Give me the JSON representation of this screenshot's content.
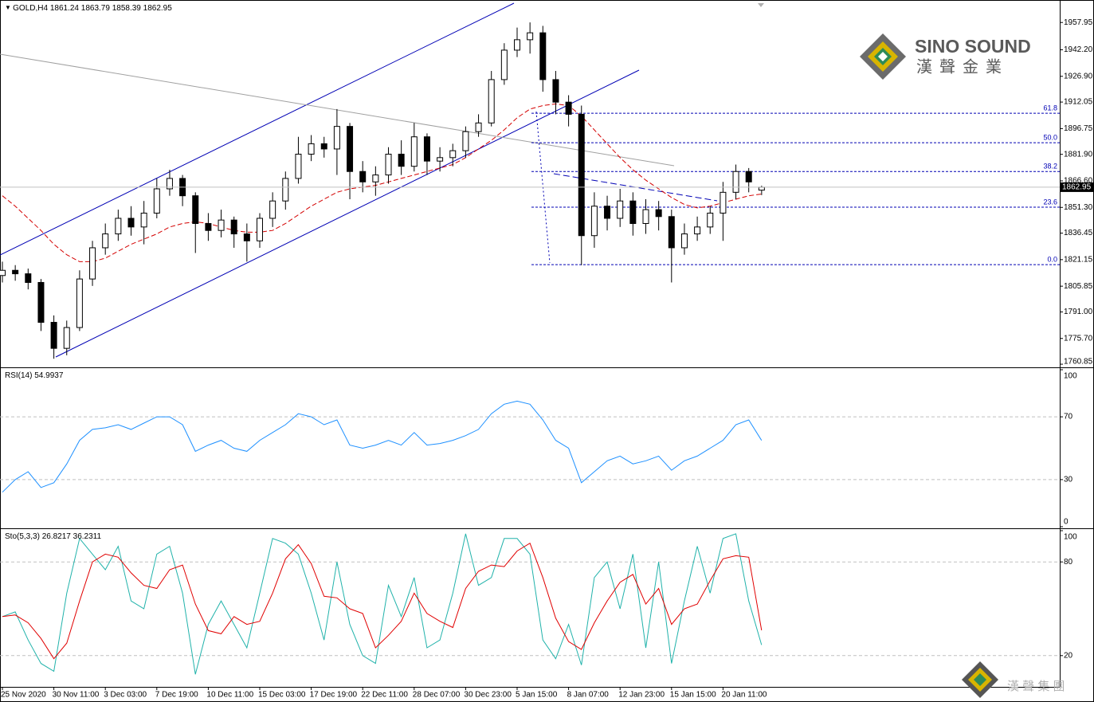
{
  "chart_data": [
    {
      "type": "candlestick",
      "symbol": "GOLD,H4",
      "categories": [
        "25 Nov 2020",
        null,
        null,
        null,
        "30 Nov 11:00",
        null,
        null,
        null,
        "3 Dec 03:00",
        null,
        null,
        null,
        "7 Dec 19:00",
        null,
        null,
        null,
        "10 Dec 11:00",
        null,
        null,
        null,
        "15 Dec 03:00",
        null,
        null,
        null,
        "17 Dec 19:00",
        null,
        null,
        null,
        "22 Dec 11:00",
        null,
        null,
        null,
        "28 Dec 07:00",
        null,
        null,
        null,
        "30 Dec 23:00",
        null,
        null,
        null,
        "5 Jan 15:00",
        null,
        null,
        null,
        "8 Jan 07:00",
        null,
        null,
        null,
        "12 Jan 23:00",
        null,
        null,
        null,
        "15 Jan 15:00",
        null,
        null,
        null,
        "20 Jan 11:00",
        null,
        null,
        null
      ],
      "open": [
        1812,
        1815,
        1813,
        1808,
        1785,
        1770,
        1782,
        1810,
        1828,
        1836,
        1845,
        1840,
        1848,
        1862,
        1868,
        1858,
        1842,
        1838,
        1844,
        1836,
        1832,
        1845,
        1855,
        1868,
        1882,
        1888,
        1885,
        1898,
        1872,
        1866,
        1870,
        1882,
        1875,
        1892,
        1878,
        1880,
        1884,
        1895,
        1900,
        1925,
        1942,
        1948,
        1952,
        1925,
        1912,
        1905,
        1835,
        1852,
        1845,
        1855,
        1842,
        1850,
        1846,
        1828,
        1836,
        1840,
        1848,
        1860,
        1872,
        1861.24
      ],
      "high": [
        1820,
        1818,
        1816,
        1810,
        1789,
        1786,
        1815,
        1832,
        1842,
        1850,
        1852,
        1855,
        1868,
        1873,
        1870,
        1860,
        1848,
        1850,
        1846,
        1842,
        1848,
        1860,
        1872,
        1892,
        1893,
        1892,
        1908,
        1900,
        1878,
        1875,
        1886,
        1890,
        1900,
        1894,
        1886,
        1888,
        1898,
        1905,
        1930,
        1946,
        1955,
        1958,
        1956,
        1930,
        1916,
        1910,
        1860,
        1858,
        1862,
        1860,
        1856,
        1855,
        1850,
        1842,
        1846,
        1852,
        1866,
        1876,
        1874,
        1863.79
      ],
      "low": [
        1808,
        1809,
        1804,
        1780,
        1764,
        1766,
        1780,
        1806,
        1824,
        1832,
        1835,
        1830,
        1845,
        1858,
        1852,
        1825,
        1832,
        1834,
        1828,
        1820,
        1828,
        1840,
        1850,
        1865,
        1878,
        1880,
        1870,
        1856,
        1860,
        1858,
        1865,
        1870,
        1872,
        1870,
        1872,
        1875,
        1880,
        1892,
        1898,
        1922,
        1938,
        1940,
        1918,
        1905,
        1898,
        1818,
        1828,
        1838,
        1840,
        1835,
        1836,
        1838,
        1808,
        1824,
        1832,
        1836,
        1832,
        1856,
        1860,
        1858.39
      ],
      "close": [
        1815,
        1813,
        1808,
        1785,
        1770,
        1782,
        1810,
        1828,
        1836,
        1845,
        1840,
        1848,
        1862,
        1868,
        1858,
        1842,
        1838,
        1844,
        1836,
        1832,
        1845,
        1855,
        1868,
        1882,
        1888,
        1885,
        1898,
        1872,
        1866,
        1870,
        1882,
        1875,
        1892,
        1878,
        1880,
        1884,
        1895,
        1900,
        1925,
        1942,
        1948,
        1952,
        1925,
        1912,
        1905,
        1835,
        1852,
        1845,
        1855,
        1842,
        1850,
        1846,
        1828,
        1836,
        1840,
        1848,
        1860,
        1872,
        1866,
        1862.95
      ],
      "up_color": "#ffffff",
      "down_color": "#000000",
      "line_color": "#000000",
      "ma": {
        "color": "#d40000",
        "values": [
          1858,
          1852,
          1845,
          1838,
          1830,
          1824,
          1820,
          1820,
          1822,
          1826,
          1830,
          1833,
          1836,
          1840,
          1842,
          1843,
          1842,
          1840,
          1838,
          1837,
          1837,
          1838,
          1842,
          1847,
          1852,
          1856,
          1860,
          1862,
          1863,
          1864,
          1866,
          1868,
          1870,
          1872,
          1874,
          1876,
          1880,
          1885,
          1890,
          1896,
          1903,
          1908,
          1910,
          1911,
          1910,
          1904,
          1896,
          1888,
          1880,
          1873,
          1867,
          1862,
          1857,
          1853,
          1851,
          1852,
          1854,
          1856,
          1858,
          1859
        ]
      },
      "fibonacci": {
        "color": "#0000b4",
        "levels": [
          {
            "value": 1905.6,
            "label": "61.8"
          },
          {
            "value": 1888.6,
            "label": "50.0"
          },
          {
            "value": 1872.0,
            "label": "38.2"
          },
          {
            "value": 1851.4,
            "label": "23.6"
          },
          {
            "value": 1818.3,
            "label": "0.0"
          }
        ]
      },
      "ylim": [
        1759.5,
        1970.0
      ],
      "yticks": [
        {
          "value": 1957.95,
          "label": "1957.95"
        },
        {
          "value": 1942.2,
          "label": "1942.20"
        },
        {
          "value": 1926.9,
          "label": "1926.90"
        },
        {
          "value": 1912.05,
          "label": "1912.05"
        },
        {
          "value": 1896.75,
          "label": "1896.75"
        },
        {
          "value": 1881.9,
          "label": "1881.90"
        },
        {
          "value": 1866.6,
          "label": "1866.60"
        },
        {
          "value": 1851.3,
          "label": "1851.30"
        },
        {
          "value": 1836.45,
          "label": "1836.45"
        },
        {
          "value": 1821.15,
          "label": "1821.15"
        },
        {
          "value": 1805.85,
          "label": "1805.85"
        },
        {
          "value": 1791.0,
          "label": "1791.00"
        },
        {
          "value": 1775.7,
          "label": "1775.70"
        },
        {
          "value": 1760.85,
          "label": "1760.85"
        }
      ]
    },
    {
      "type": "line",
      "title": "RSI(14)",
      "series": [
        {
          "color": "#1e90ff",
          "values": [
            22,
            30,
            35,
            25,
            28,
            40,
            55,
            62,
            63,
            65,
            62,
            66,
            70,
            70,
            65,
            48,
            52,
            55,
            50,
            48,
            55,
            60,
            65,
            72,
            70,
            65,
            68,
            52,
            50,
            52,
            55,
            52,
            60,
            52,
            53,
            55,
            58,
            62,
            72,
            78,
            80,
            78,
            68,
            55,
            50,
            28,
            35,
            42,
            45,
            40,
            42,
            45,
            36,
            42,
            45,
            50,
            55,
            65,
            68,
            54.9937
          ]
        }
      ],
      "ylim": [
        0,
        100
      ],
      "yticks": [
        0,
        30,
        70,
        100
      ],
      "levels": [
        30,
        70
      ]
    },
    {
      "type": "line",
      "title": "Sto(5,3,3)",
      "series": [
        {
          "color": "#20b2aa",
          "values": [
            45,
            48,
            30,
            15,
            10,
            60,
            95,
            85,
            75,
            90,
            55,
            50,
            85,
            90,
            60,
            8,
            40,
            55,
            40,
            25,
            60,
            95,
            92,
            85,
            60,
            30,
            80,
            40,
            20,
            15,
            65,
            45,
            70,
            25,
            30,
            60,
            98,
            65,
            70,
            95,
            95,
            85,
            30,
            18,
            40,
            14,
            70,
            80,
            50,
            85,
            25,
            80,
            15,
            55,
            90,
            60,
            95,
            98,
            55,
            26.8217
          ]
        },
        {
          "color": "#e00000",
          "values": [
            45,
            46,
            41,
            31,
            18,
            28,
            55,
            80,
            85,
            83,
            73,
            65,
            63,
            75,
            78,
            53,
            36,
            34,
            45,
            40,
            42,
            60,
            82,
            91,
            79,
            58,
            57,
            50,
            47,
            25,
            33,
            42,
            60,
            47,
            42,
            38,
            63,
            74,
            78,
            77,
            87,
            92,
            70,
            44,
            29,
            24,
            41,
            55,
            67,
            72,
            53,
            63,
            40,
            50,
            53,
            68,
            82,
            84,
            83,
            36.2311
          ]
        }
      ],
      "ylim": [
        0,
        100
      ],
      "yticks": [
        20,
        80,
        100
      ],
      "levels": [
        20,
        80
      ]
    }
  ],
  "logo": {
    "name": "SINO SOUND",
    "chinese": "漢聲金業"
  },
  "watermark": "漢 聲 集 團"
}
